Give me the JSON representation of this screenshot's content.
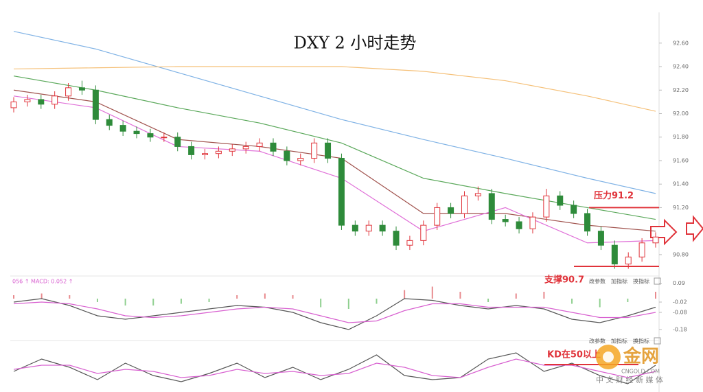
{
  "chart_data": [
    {
      "type": "candlestick",
      "title": "DXY 2 小时走势",
      "ohlc": [
        [
          92.05,
          92.14,
          92.01,
          92.1
        ],
        [
          92.1,
          92.16,
          92.06,
          92.12
        ],
        [
          92.12,
          92.16,
          92.04,
          92.08
        ],
        [
          92.08,
          92.19,
          92.04,
          92.15
        ],
        [
          92.15,
          92.26,
          92.11,
          92.22
        ],
        [
          92.22,
          92.28,
          92.16,
          92.2
        ],
        [
          92.2,
          92.24,
          91.91,
          91.95
        ],
        [
          91.95,
          91.99,
          91.86,
          91.9
        ],
        [
          91.9,
          91.94,
          91.81,
          91.85
        ],
        [
          91.85,
          91.89,
          91.79,
          91.83
        ],
        [
          91.83,
          91.87,
          91.76,
          91.8
        ],
        [
          91.8,
          91.84,
          91.76,
          91.8
        ],
        [
          91.8,
          91.84,
          91.68,
          91.72
        ],
        [
          91.72,
          91.76,
          91.61,
          91.65
        ],
        [
          91.65,
          91.7,
          91.61,
          91.66
        ],
        [
          91.66,
          91.72,
          91.62,
          91.68
        ],
        [
          91.68,
          91.74,
          91.64,
          91.7
        ],
        [
          91.7,
          91.76,
          91.66,
          91.72
        ],
        [
          91.72,
          91.79,
          91.68,
          91.75
        ],
        [
          91.75,
          91.79,
          91.64,
          91.68
        ],
        [
          91.68,
          91.72,
          91.56,
          91.6
        ],
        [
          91.6,
          91.66,
          91.56,
          91.62
        ],
        [
          91.62,
          91.79,
          91.58,
          91.75
        ],
        [
          91.75,
          91.79,
          91.58,
          91.62
        ],
        [
          91.62,
          91.66,
          91.01,
          91.05
        ],
        [
          91.05,
          91.09,
          90.96,
          91.0
        ],
        [
          91.0,
          91.09,
          90.96,
          91.05
        ],
        [
          91.05,
          91.09,
          90.96,
          91.0
        ],
        [
          91.0,
          91.04,
          90.84,
          90.88
        ],
        [
          90.88,
          90.96,
          90.84,
          90.92
        ],
        [
          90.92,
          91.09,
          90.88,
          91.05
        ],
        [
          91.05,
          91.24,
          91.01,
          91.2
        ],
        [
          91.2,
          91.24,
          91.11,
          91.15
        ],
        [
          91.15,
          91.34,
          91.11,
          91.3
        ],
        [
          91.3,
          91.38,
          91.26,
          91.32
        ],
        [
          91.32,
          91.36,
          91.06,
          91.1
        ],
        [
          91.1,
          91.14,
          91.04,
          91.08
        ],
        [
          91.08,
          91.12,
          90.98,
          91.02
        ],
        [
          91.02,
          91.16,
          90.98,
          91.12
        ],
        [
          91.12,
          91.36,
          91.08,
          91.3
        ],
        [
          91.3,
          91.34,
          91.18,
          91.22
        ],
        [
          91.22,
          91.26,
          91.11,
          91.15
        ],
        [
          91.15,
          91.19,
          90.96,
          91.0
        ],
        [
          91.0,
          91.04,
          90.84,
          90.88
        ],
        [
          90.88,
          90.92,
          90.68,
          90.72
        ],
        [
          90.72,
          90.82,
          90.68,
          90.78
        ],
        [
          90.78,
          90.94,
          90.74,
          90.9
        ],
        [
          90.9,
          90.99,
          90.86,
          90.95
        ]
      ],
      "up_color": "#e0333a",
      "down_color": "#2e8b3a",
      "series": [
        {
          "color": "#7fb2e5",
          "x": [
            0,
            6,
            12,
            18,
            24,
            30,
            36,
            42,
            47
          ],
          "values": [
            92.7,
            92.55,
            92.35,
            92.15,
            91.95,
            91.78,
            91.62,
            91.45,
            91.32
          ]
        },
        {
          "color": "#f5c078",
          "x": [
            0,
            6,
            12,
            18,
            24,
            30,
            36,
            42,
            47
          ],
          "values": [
            92.38,
            92.39,
            92.4,
            92.4,
            92.4,
            92.36,
            92.28,
            92.15,
            92.02
          ]
        },
        {
          "color": "#5aa85a",
          "x": [
            0,
            6,
            12,
            18,
            24,
            30,
            36,
            42,
            47
          ],
          "values": [
            92.32,
            92.2,
            92.05,
            91.92,
            91.75,
            91.45,
            91.32,
            91.2,
            91.1
          ]
        },
        {
          "color": "#a0524d",
          "x": [
            0,
            6,
            12,
            18,
            24,
            30,
            36,
            42,
            47
          ],
          "values": [
            92.2,
            92.1,
            91.78,
            91.72,
            91.62,
            91.15,
            91.15,
            91.05,
            91.0
          ]
        },
        {
          "color": "#e070d8",
          "x": [
            0,
            6,
            12,
            18,
            24,
            30,
            36,
            42,
            47
          ],
          "values": [
            92.15,
            92.05,
            91.72,
            91.68,
            91.45,
            91.0,
            91.2,
            90.9,
            90.92
          ]
        }
      ],
      "ylim": [
        90.63,
        92.85
      ],
      "yticks": [
        {
          "value": 92.6,
          "label": "92.60"
        },
        {
          "value": 92.4,
          "label": "92.40"
        },
        {
          "value": 92.2,
          "label": "92.20"
        },
        {
          "value": 92.0,
          "label": "92.00"
        },
        {
          "value": 91.8,
          "label": "91.80"
        },
        {
          "value": 91.6,
          "label": "91.60"
        },
        {
          "value": 91.4,
          "label": "91.40"
        },
        {
          "value": 91.2,
          "label": "91.20"
        },
        {
          "value": 90.8,
          "label": "90.80"
        }
      ],
      "annotations": [
        {
          "text": "压力91.2",
          "value": 91.2,
          "color": "#e0333a"
        },
        {
          "text": "支撑90.7",
          "value": 90.7,
          "color": "#e0333a"
        }
      ]
    },
    {
      "type": "macd",
      "header": "056 ↑ MACD: 0.052 ↑",
      "buttons": [
        "改参数",
        "加指标",
        "换指标"
      ],
      "bars": [
        0.02,
        0.03,
        0.02,
        -0.02,
        -0.04,
        -0.04,
        -0.03,
        -0.02,
        0.02,
        0.03,
        0.02,
        -0.05,
        -0.06,
        -0.03,
        0.05,
        0.07,
        0.04,
        -0.02,
        0.03,
        0.04,
        -0.03,
        -0.05,
        -0.02,
        0.04
      ],
      "up_color": "#e88a8e",
      "down_color": "#8fcf8f",
      "series": [
        {
          "color": "#555555",
          "values": [
            -0.02,
            0.0,
            -0.04,
            -0.1,
            -0.12,
            -0.1,
            -0.08,
            -0.06,
            -0.04,
            -0.05,
            -0.08,
            -0.14,
            -0.18,
            -0.1,
            0.0,
            -0.01,
            -0.04,
            -0.06,
            -0.04,
            -0.06,
            -0.12,
            -0.14,
            -0.1,
            -0.05
          ]
        },
        {
          "color": "#d860d0",
          "values": [
            -0.03,
            -0.02,
            -0.03,
            -0.06,
            -0.1,
            -0.11,
            -0.1,
            -0.08,
            -0.06,
            -0.05,
            -0.06,
            -0.1,
            -0.14,
            -0.13,
            -0.07,
            -0.03,
            -0.03,
            -0.05,
            -0.05,
            -0.05,
            -0.08,
            -0.11,
            -0.11,
            -0.08
          ]
        }
      ],
      "ylim": [
        -0.22,
        0.12
      ],
      "yticks": [
        0.09,
        -0.02,
        -0.08,
        -0.18
      ]
    },
    {
      "type": "line",
      "buttons": [
        "改参数",
        "加指标",
        "换指标"
      ],
      "annotation": "KD在50以上",
      "series": [
        {
          "color": "#555555",
          "values": [
            40,
            70,
            50,
            20,
            60,
            30,
            15,
            35,
            60,
            25,
            50,
            20,
            45,
            80,
            30,
            20,
            25,
            70,
            85,
            40,
            60,
            30,
            10,
            55
          ]
        },
        {
          "color": "#d860d0",
          "values": [
            45,
            55,
            55,
            35,
            45,
            40,
            25,
            30,
            45,
            35,
            40,
            30,
            35,
            60,
            50,
            30,
            25,
            50,
            70,
            55,
            55,
            40,
            25,
            40
          ]
        }
      ],
      "ylim": [
        0,
        100
      ]
    }
  ],
  "watermark": {
    "brand": "金网",
    "domain": "CNGOLD.COM",
    "slogan": "中 文 财 经 新 媒 体"
  }
}
